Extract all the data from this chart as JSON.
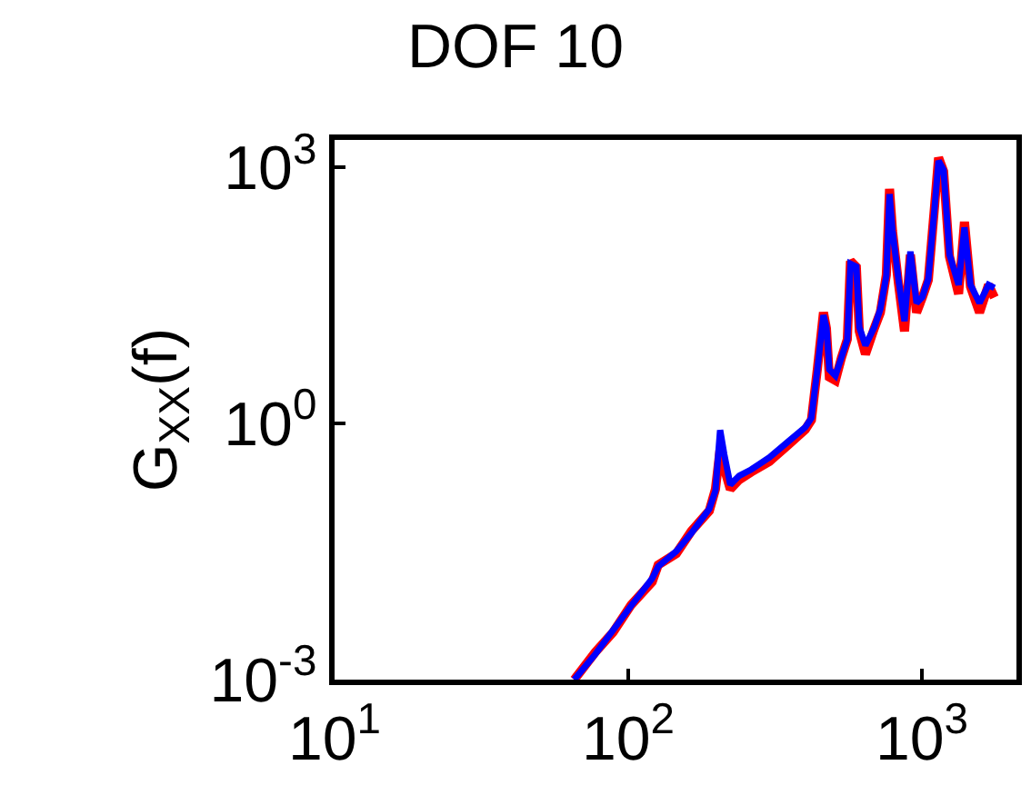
{
  "chart_data": {
    "type": "line",
    "title": "DOF 10",
    "ylabel": "G$_{XX}$(f)",
    "log": "xy",
    "marker": "none",
    "line_style": "solid",
    "xlim": [
      10,
      2100
    ],
    "ylim": [
      0.001,
      2100
    ],
    "xticks": [
      {
        "value": 10,
        "label": "10$^{1}$"
      },
      {
        "value": 100,
        "label": "10$^{2}$"
      },
      {
        "value": 1000,
        "label": "10$^{3}$"
      }
    ],
    "yticks": [
      {
        "value": 0.001,
        "label": "10$^{-3}$"
      },
      {
        "value": 1,
        "label": "10$^{0}$"
      },
      {
        "value": 1000,
        "label": "10$^{3}$"
      }
    ],
    "x": [
      65.5,
      77.3,
      88.9,
      102.3,
      120.7,
      126.5,
      145.8,
      164.1,
      188.9,
      198.2,
      205.6,
      212.4,
      222.7,
      238.9,
      262.4,
      302.6,
      348.4,
      401,
      420.7,
      430.5,
      440.6,
      462.4,
      473.2,
      484.2,
      507.7,
      532.3,
      557.5,
      571.4,
      598.4,
      612.4,
      642.7,
      688.7,
      722.4,
      757,
      776.2,
      794.3,
      831.8,
      873,
      914.1,
      959.4,
      1004,
      1052,
      1104,
      1140,
      1186,
      1242,
      1334,
      1397,
      1465,
      1572,
      1687,
      1767
    ],
    "series": [
      {
        "color": "#ff0000",
        "values": [
          0.001,
          0.0021,
          0.0036,
          0.0075,
          0.014,
          0.022,
          0.03,
          0.055,
          0.095,
          0.17,
          0.5,
          0.3,
          0.17,
          0.22,
          0.27,
          0.36,
          0.55,
          0.85,
          1.1,
          2.2,
          4.3,
          20,
          13,
          3.5,
          3.2,
          5.9,
          9.7,
          80,
          68,
          12,
          6.5,
          13,
          20,
          55,
          560,
          180,
          45,
          12,
          95,
          20,
          30,
          48,
          340,
          1300,
          900,
          90,
          33,
          230,
          40,
          20,
          42,
          30
        ]
      },
      {
        "color": "#0000ff",
        "values": [
          0.001,
          0.00199,
          0.00382,
          0.00733,
          0.0153,
          0.0212,
          0.0319,
          0.052,
          0.1,
          0.163,
          0.836,
          0.435,
          0.192,
          0.245,
          0.289,
          0.401,
          0.603,
          0.906,
          1.16,
          2.23,
          4.28,
          18.6,
          13.4,
          4.28,
          3.63,
          5.93,
          9.68,
          74.5,
          68.7,
          13.4,
          8.22,
          13.4,
          21.9,
          53.7,
          487.5,
          182.9,
          49.5,
          15.8,
          103.3,
          25.8,
          30.3,
          49.5,
          324,
          1197,
          937,
          95.2,
          42.1,
          198.6,
          42.1,
          25.8,
          42.1,
          38.8
        ]
      }
    ]
  }
}
